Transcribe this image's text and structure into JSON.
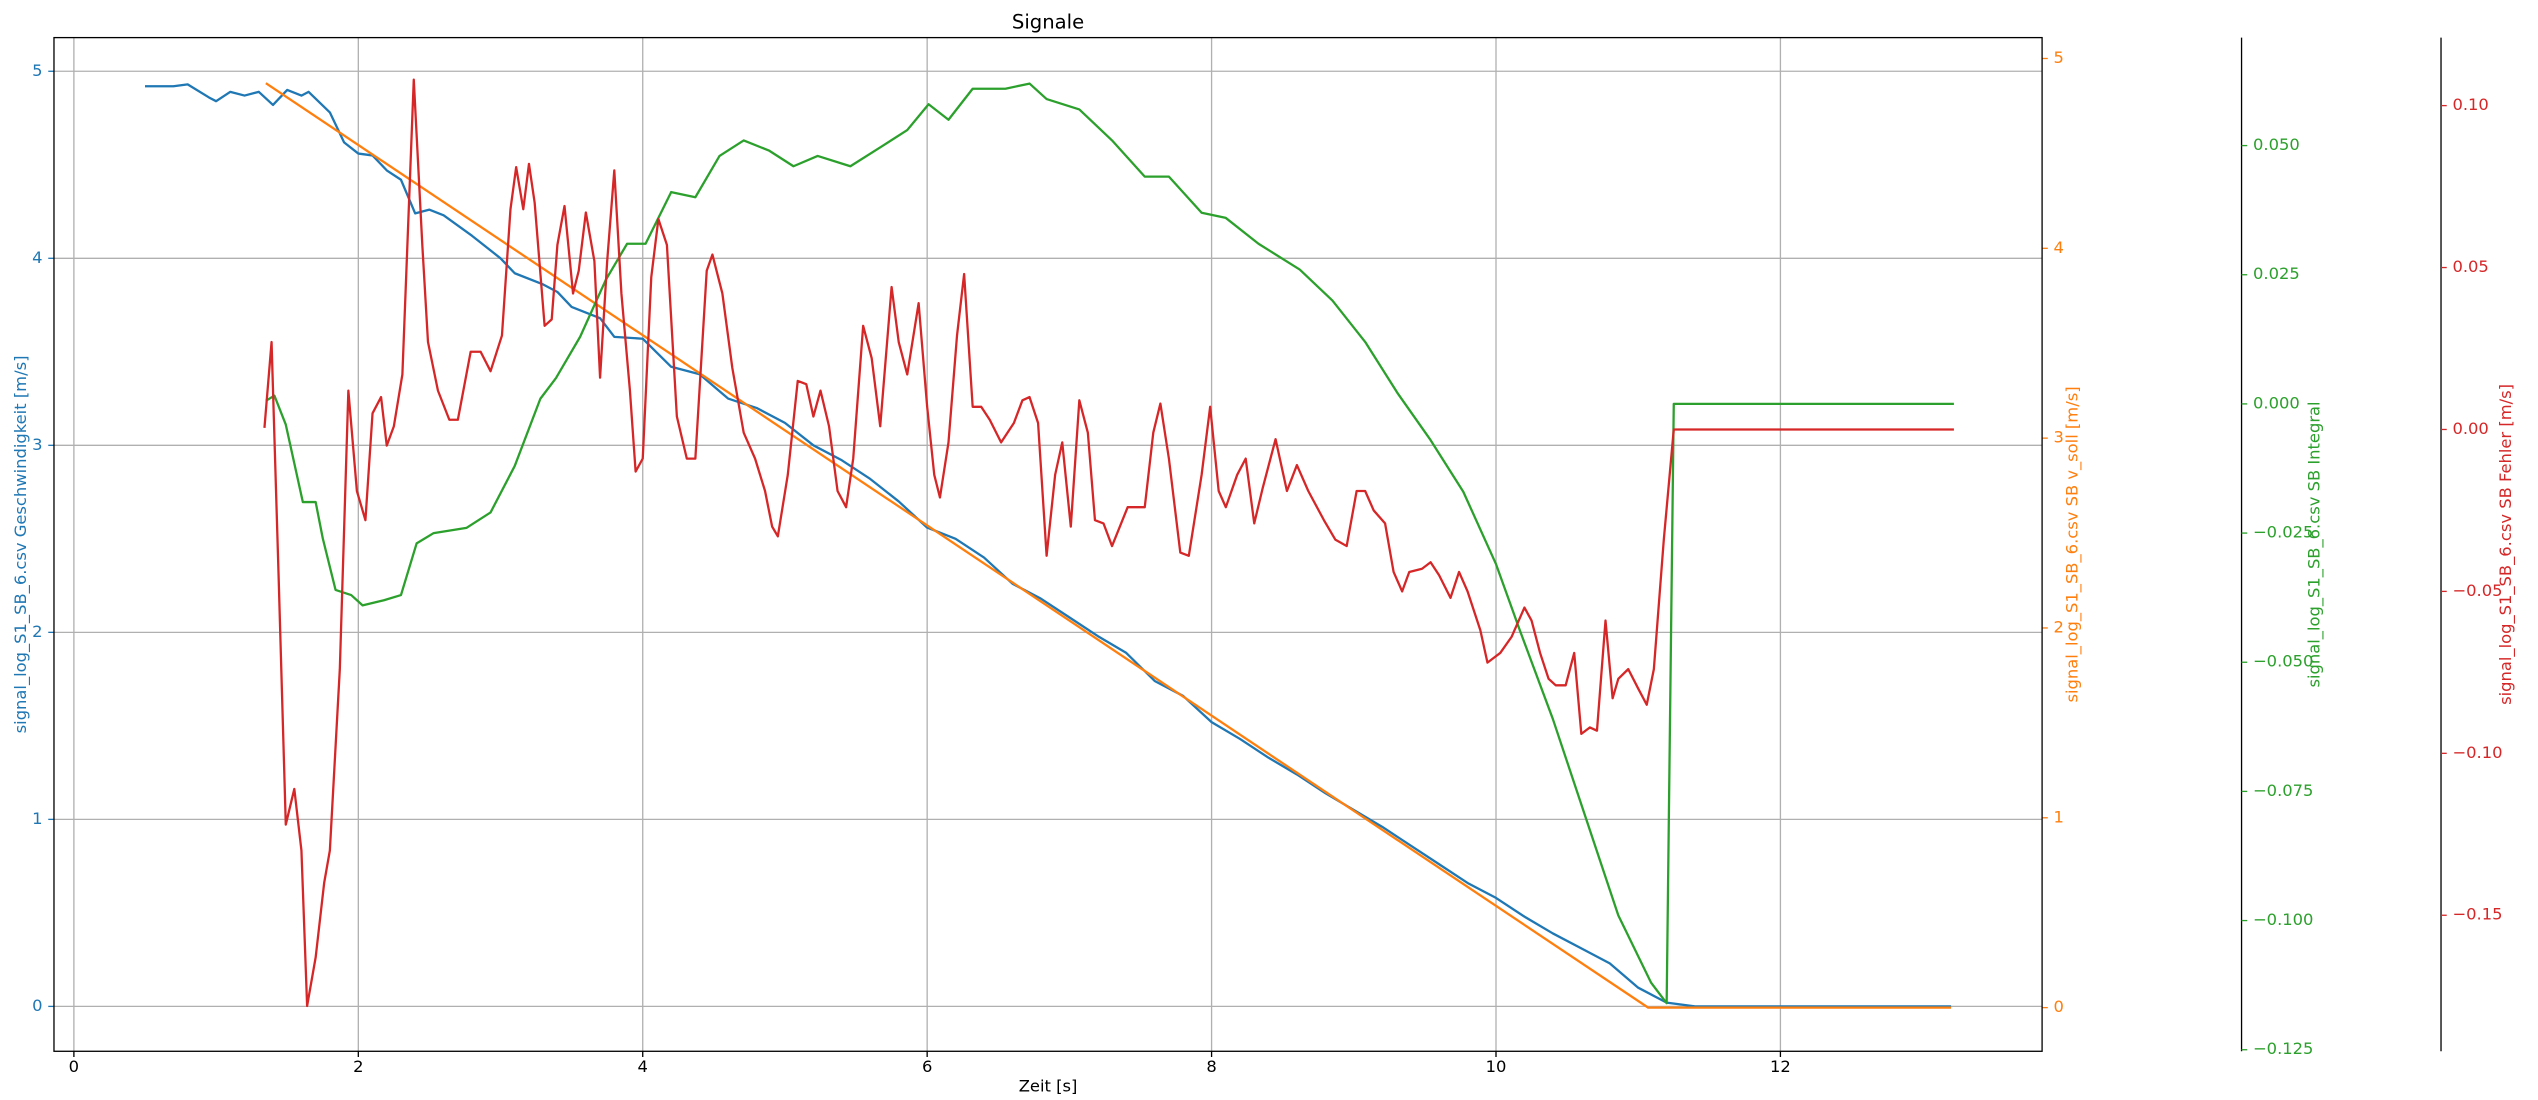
{
  "chart_data": {
    "type": "line",
    "title": "Signale",
    "xlabel": "Zeit [s]",
    "xlim": [
      -0.14,
      13.84
    ],
    "xticks": [
      0,
      2,
      4,
      6,
      8,
      10,
      12
    ],
    "ylabel": "signal_log_S1_SB_6.csv Geschwindigkeit [m/s]",
    "ylim": [
      -0.24,
      5.18
    ],
    "yticks": [
      0,
      1,
      2,
      3,
      4,
      5
    ],
    "y2label": "signal_log_S1_SB_6.csv SB v_soll [m/s]",
    "y2lim": [
      -0.23,
      5.11
    ],
    "y2ticks": [
      0,
      1,
      2,
      3,
      4,
      5
    ],
    "y3label": "signal_log_S1_SB_6.csv SB Integral",
    "y3lim": [
      -0.1253,
      0.0709
    ],
    "y3ticks": [
      {
        "value": -0.125,
        "label": "−0.125"
      },
      {
        "value": -0.1,
        "label": "−0.100"
      },
      {
        "value": -0.075,
        "label": "−0.075"
      },
      {
        "value": -0.05,
        "label": "−0.050"
      },
      {
        "value": -0.025,
        "label": "−0.025"
      },
      {
        "value": 0,
        "label": "0.000"
      },
      {
        "value": 0.025,
        "label": "0.025"
      },
      {
        "value": 0.05,
        "label": "0.050"
      }
    ],
    "y4label": "signal_log_S1_SB_6.csv SB Fehler [m/s]",
    "y4lim": [
      -0.192,
      0.121
    ],
    "y4ticks": [
      {
        "value": -0.15,
        "label": "−0.15"
      },
      {
        "value": -0.1,
        "label": "−0.10"
      },
      {
        "value": -0.05,
        "label": "−0.05"
      },
      {
        "value": 0,
        "label": "0.00"
      },
      {
        "value": 0.05,
        "label": "0.05"
      },
      {
        "value": 0.1,
        "label": "0.10"
      }
    ],
    "grid": true,
    "series": [
      {
        "color": "#1f77b4",
        "axis": "y",
        "x": [
          0.5,
          0.7,
          0.8,
          0.95,
          1.0,
          1.1,
          1.2,
          1.3,
          1.4,
          1.5,
          1.6,
          1.65,
          1.8,
          1.9,
          2.0,
          2.1,
          2.2,
          2.3,
          2.4,
          2.5,
          2.6,
          2.8,
          3.0,
          3.1,
          3.3,
          3.4,
          3.5,
          3.6,
          3.7,
          3.8,
          4.0,
          4.2,
          4.4,
          4.6,
          4.8,
          5.0,
          5.2,
          5.4,
          5.6,
          5.8,
          6.0,
          6.2,
          6.4,
          6.6,
          6.8,
          7.0,
          7.2,
          7.4,
          7.6,
          7.8,
          8.0,
          8.2,
          8.4,
          8.6,
          8.8,
          9.0,
          9.2,
          9.4,
          9.6,
          9.8,
          10.0,
          10.2,
          10.4,
          10.6,
          10.8,
          11.0,
          11.2,
          11.4,
          12.0,
          13.2
        ],
        "values": [
          4.92,
          4.92,
          4.93,
          4.86,
          4.84,
          4.89,
          4.87,
          4.89,
          4.82,
          4.9,
          4.87,
          4.89,
          4.78,
          4.62,
          4.56,
          4.55,
          4.47,
          4.42,
          4.24,
          4.26,
          4.23,
          4.12,
          4.0,
          3.92,
          3.86,
          3.82,
          3.74,
          3.71,
          3.68,
          3.58,
          3.57,
          3.42,
          3.38,
          3.25,
          3.2,
          3.12,
          3.0,
          2.92,
          2.82,
          2.7,
          2.56,
          2.5,
          2.4,
          2.26,
          2.18,
          2.08,
          1.98,
          1.89,
          1.74,
          1.66,
          1.52,
          1.43,
          1.33,
          1.24,
          1.14,
          1.05,
          0.96,
          0.86,
          0.76,
          0.66,
          0.58,
          0.48,
          0.39,
          0.31,
          0.23,
          0.1,
          0.02,
          0,
          0,
          0
        ]
      },
      {
        "color": "#ff7f0e",
        "axis": "y2",
        "x": [
          1.35,
          11.07,
          13.2
        ],
        "values": [
          4.87,
          0,
          0
        ]
      },
      {
        "color": "#2ca02c",
        "axis": "y3",
        "x": [
          1.35,
          1.41,
          1.49,
          1.61,
          1.7,
          1.75,
          1.84,
          1.95,
          2.03,
          2.18,
          2.3,
          2.41,
          2.53,
          2.76,
          2.93,
          3.1,
          3.28,
          3.39,
          3.56,
          3.74,
          3.89,
          4.02,
          4.2,
          4.37,
          4.54,
          4.71,
          4.89,
          5.06,
          5.23,
          5.46,
          5.69,
          5.86,
          6.01,
          6.15,
          6.32,
          6.55,
          6.72,
          6.84,
          7.07,
          7.3,
          7.53,
          7.7,
          7.93,
          8.1,
          8.33,
          8.62,
          8.85,
          9.08,
          9.31,
          9.54,
          9.77,
          10.0,
          10.17,
          10.4,
          10.63,
          10.86,
          11.09,
          11.2,
          11.25,
          13.22
        ],
        "values": [
          0.0006,
          0.0016,
          -0.004,
          -0.019,
          -0.019,
          -0.026,
          -0.036,
          -0.037,
          -0.039,
          -0.038,
          -0.037,
          -0.027,
          -0.025,
          -0.024,
          -0.021,
          -0.012,
          0.001,
          0.005,
          0.013,
          0.024,
          0.031,
          0.031,
          0.041,
          0.04,
          0.048,
          0.051,
          0.049,
          0.046,
          0.048,
          0.046,
          0.05,
          0.053,
          0.058,
          0.055,
          0.061,
          0.061,
          0.062,
          0.059,
          0.057,
          0.051,
          0.044,
          0.044,
          0.037,
          0.036,
          0.031,
          0.026,
          0.02,
          0.012,
          0.002,
          -0.007,
          -0.017,
          -0.031,
          -0.044,
          -0.061,
          -0.08,
          -0.099,
          -0.112,
          -0.116,
          0,
          0
        ]
      },
      {
        "color": "#d62728",
        "axis": "y4",
        "x": [
          1.34,
          1.39,
          1.44,
          1.49,
          1.55,
          1.6,
          1.64,
          1.7,
          1.76,
          1.8,
          1.87,
          1.93,
          1.99,
          2.05,
          2.1,
          2.16,
          2.2,
          2.25,
          2.31,
          2.39,
          2.45,
          2.49,
          2.56,
          2.64,
          2.7,
          2.79,
          2.86,
          2.93,
          3.01,
          3.07,
          3.11,
          3.16,
          3.2,
          3.24,
          3.31,
          3.36,
          3.4,
          3.45,
          3.51,
          3.55,
          3.6,
          3.66,
          3.7,
          3.75,
          3.8,
          3.85,
          3.91,
          3.95,
          4.0,
          4.06,
          4.11,
          4.17,
          4.24,
          4.31,
          4.37,
          4.45,
          4.49,
          4.56,
          4.63,
          4.71,
          4.79,
          4.86,
          4.91,
          4.95,
          5.02,
          5.09,
          5.15,
          5.2,
          5.25,
          5.31,
          5.37,
          5.43,
          5.48,
          5.55,
          5.61,
          5.67,
          5.75,
          5.8,
          5.86,
          5.94,
          6.0,
          6.05,
          6.09,
          6.15,
          6.21,
          6.26,
          6.32,
          6.38,
          6.44,
          6.52,
          6.61,
          6.67,
          6.72,
          6.78,
          6.84,
          6.9,
          6.95,
          7.01,
          7.07,
          7.13,
          7.18,
          7.24,
          7.3,
          7.41,
          7.53,
          7.59,
          7.64,
          7.7,
          7.78,
          7.84,
          7.93,
          7.99,
          8.05,
          8.1,
          8.18,
          8.24,
          8.3,
          8.36,
          8.45,
          8.53,
          8.6,
          8.68,
          8.79,
          8.87,
          8.95,
          9.02,
          9.08,
          9.14,
          9.22,
          9.28,
          9.34,
          9.39,
          9.48,
          9.54,
          9.6,
          9.68,
          9.74,
          9.8,
          9.89,
          9.94,
          10.03,
          10.11,
          10.2,
          10.25,
          10.31,
          10.37,
          10.42,
          10.49,
          10.55,
          10.6,
          10.66,
          10.71,
          10.77,
          10.82,
          10.86,
          10.93,
          11.0,
          11.06,
          11.11,
          11.18,
          11.25,
          13.22
        ],
        "values": [
          0.0005,
          0.027,
          -0.046,
          -0.122,
          -0.111,
          -0.13,
          -0.178,
          -0.163,
          -0.14,
          -0.13,
          -0.074,
          0.012,
          -0.019,
          -0.028,
          0.005,
          0.01,
          -0.005,
          0.001,
          0.017,
          0.108,
          0.057,
          0.027,
          0.012,
          0.003,
          0.003,
          0.024,
          0.024,
          0.018,
          0.029,
          0.068,
          0.081,
          0.068,
          0.082,
          0.07,
          0.032,
          0.034,
          0.057,
          0.069,
          0.042,
          0.049,
          0.067,
          0.052,
          0.016,
          0.052,
          0.08,
          0.042,
          0.012,
          -0.013,
          -0.009,
          0.047,
          0.065,
          0.057,
          0.004,
          -0.009,
          -0.009,
          0.049,
          0.054,
          0.042,
          0.019,
          -0.001,
          -0.009,
          -0.019,
          -0.03,
          -0.033,
          -0.014,
          0.015,
          0.014,
          0.004,
          0.012,
          0.001,
          -0.019,
          -0.024,
          -0.009,
          0.032,
          0.022,
          0.001,
          0.044,
          0.027,
          0.017,
          0.039,
          0.007,
          -0.014,
          -0.021,
          -0.004,
          0.029,
          0.048,
          0.007,
          0.007,
          0.003,
          -0.004,
          0.002,
          0.009,
          0.01,
          0.002,
          -0.039,
          -0.014,
          -0.004,
          -0.03,
          0.009,
          -0.001,
          -0.028,
          -0.029,
          -0.036,
          -0.024,
          -0.024,
          -0.001,
          0.008,
          -0.009,
          -0.038,
          -0.039,
          -0.014,
          0.007,
          -0.019,
          -0.024,
          -0.014,
          -0.009,
          -0.029,
          -0.018,
          -0.003,
          -0.019,
          -0.011,
          -0.019,
          -0.028,
          -0.034,
          -0.036,
          -0.019,
          -0.019,
          -0.025,
          -0.029,
          -0.044,
          -0.05,
          -0.044,
          -0.043,
          -0.041,
          -0.045,
          -0.052,
          -0.044,
          -0.05,
          -0.062,
          -0.072,
          -0.069,
          -0.064,
          -0.055,
          -0.059,
          -0.069,
          -0.077,
          -0.079,
          -0.079,
          -0.069,
          -0.094,
          -0.092,
          -0.093,
          -0.059,
          -0.083,
          -0.077,
          -0.074,
          -0.08,
          -0.085,
          -0.074,
          -0.034,
          0,
          0
        ]
      }
    ]
  }
}
